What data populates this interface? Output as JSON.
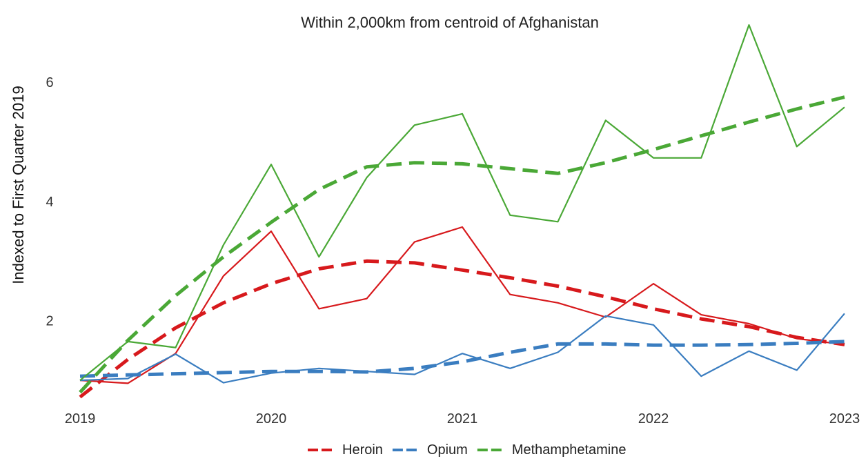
{
  "chart_data": {
    "type": "line",
    "title": "Within 2,000km from centroid of Afghanistan",
    "xlabel": "",
    "ylabel": "Indexed to First Quarter 2019",
    "x": [
      2019.0,
      2019.25,
      2019.5,
      2019.75,
      2020.0,
      2020.25,
      2020.5,
      2020.75,
      2021.0,
      2021.25,
      2021.5,
      2021.75,
      2022.0,
      2022.25,
      2022.5,
      2022.75,
      2023.0
    ],
    "xlim": [
      2019,
      2023
    ],
    "ylim": [
      0.55,
      7.1
    ],
    "xticks": [
      2019,
      2020,
      2021,
      2022,
      2023
    ],
    "xtick_labels": [
      "2019",
      "2020",
      "2021",
      "2022",
      "2023"
    ],
    "yticks": [
      2,
      4,
      6
    ],
    "ytick_labels": [
      "2",
      "4",
      "6"
    ],
    "grid": false,
    "legend_position": "bottom",
    "series": [
      {
        "name": "Heroin",
        "color": "#d7191c",
        "actual": [
          1.0,
          0.95,
          1.45,
          2.75,
          3.5,
          2.2,
          2.37,
          3.32,
          3.57,
          2.44,
          2.3,
          2.06,
          2.62,
          2.1,
          1.95,
          1.7,
          1.6
        ],
        "trend": [
          0.72,
          1.35,
          1.88,
          2.3,
          2.62,
          2.87,
          3.0,
          2.97,
          2.85,
          2.72,
          2.58,
          2.4,
          2.2,
          2.03,
          1.9,
          1.72,
          1.6
        ]
      },
      {
        "name": "Opium",
        "color": "#3a7dc0",
        "actual": [
          1.0,
          1.03,
          1.44,
          0.96,
          1.12,
          1.2,
          1.15,
          1.1,
          1.45,
          1.2,
          1.47,
          2.08,
          1.93,
          1.07,
          1.49,
          1.17,
          2.12
        ],
        "trend": [
          1.07,
          1.09,
          1.11,
          1.13,
          1.15,
          1.15,
          1.14,
          1.2,
          1.31,
          1.47,
          1.61,
          1.61,
          1.59,
          1.59,
          1.6,
          1.62,
          1.65
        ]
      },
      {
        "name": "Methamphetamine",
        "color": "#4aa836",
        "actual": [
          1.0,
          1.65,
          1.55,
          3.27,
          4.62,
          3.07,
          4.4,
          5.28,
          5.47,
          3.77,
          3.66,
          5.36,
          4.73,
          4.73,
          6.96,
          4.92,
          5.58
        ],
        "trend": [
          0.8,
          1.67,
          2.42,
          3.07,
          3.65,
          4.2,
          4.58,
          4.65,
          4.63,
          4.55,
          4.47,
          4.65,
          4.87,
          5.1,
          5.33,
          5.55,
          5.75
        ]
      }
    ]
  }
}
